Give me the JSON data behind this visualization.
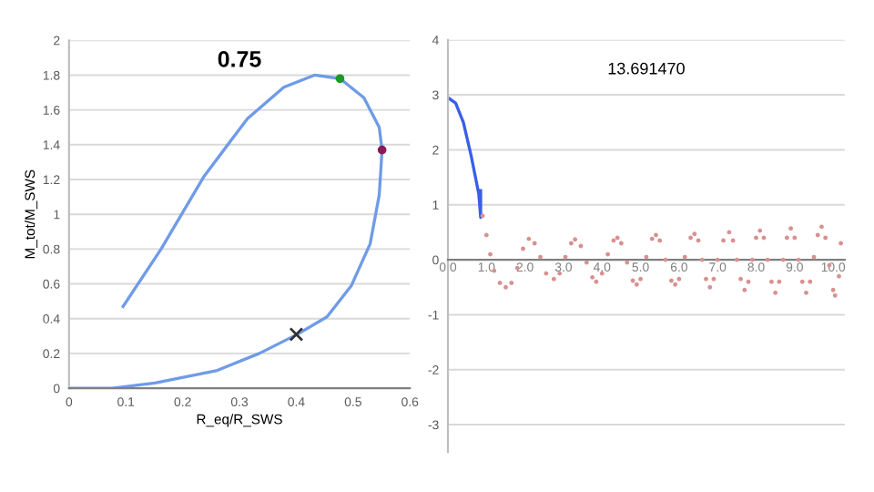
{
  "chart_data": [
    {
      "type": "line",
      "title": "0.75",
      "xlabel": "R_eq/R_SWS",
      "ylabel": "M_tot/M_SWS",
      "xlim": [
        0,
        0.6
      ],
      "ylim": [
        0,
        2
      ],
      "xticks": [
        0,
        0.1,
        0.2,
        0.3,
        0.4,
        0.5,
        0.6
      ],
      "yticks": [
        0,
        0.2,
        0.4,
        0.6,
        0.8,
        1,
        1.2,
        1.4,
        1.6,
        1.8,
        2
      ],
      "grid": "y",
      "series": [
        {
          "color": "#6f9be8",
          "x": [
            0.095,
            0.162,
            0.238,
            0.314,
            0.378,
            0.432,
            0.477,
            0.519,
            0.546,
            0.551,
            0.546,
            0.53,
            0.497,
            0.454,
            0.402,
            0.335,
            0.259,
            0.151,
            0.076,
            0
          ],
          "values": [
            0.47,
            0.8,
            1.22,
            1.55,
            1.73,
            1.8,
            1.78,
            1.67,
            1.5,
            1.37,
            1.11,
            0.83,
            0.59,
            0.41,
            0.31,
            0.2,
            0.1,
            0.03,
            0,
            0
          ]
        },
        {
          "type": "scatter",
          "color": "#1a9a2a",
          "marker": "circle",
          "x": [
            0.477
          ],
          "values": [
            1.78
          ]
        },
        {
          "type": "scatter",
          "color": "#8b1a5a",
          "marker": "circle",
          "x": [
            0.551
          ],
          "values": [
            1.37
          ]
        },
        {
          "type": "scatter",
          "color": "#333333",
          "marker": "cross",
          "x": [
            0.4
          ],
          "values": [
            0.31
          ]
        }
      ]
    },
    {
      "type": "line",
      "title": "13.691470",
      "xlim": [
        0,
        10.3
      ],
      "ylim": [
        -3.5,
        4
      ],
      "xticks": [
        {
          "value": 0,
          "label": "0.0"
        },
        {
          "value": 1,
          "label": "1.0"
        },
        {
          "value": 2,
          "label": "2.0"
        },
        {
          "value": 3,
          "label": "3.0"
        },
        {
          "value": 4,
          "label": "4.0"
        },
        {
          "value": 5,
          "label": "5.0"
        },
        {
          "value": 6,
          "label": "6.0"
        },
        {
          "value": 7,
          "label": "7.0"
        },
        {
          "value": 8,
          "label": "8.0"
        },
        {
          "value": 9,
          "label": "9.0"
        },
        {
          "value": 10,
          "label": "10.0"
        }
      ],
      "yticks": [
        -3,
        -2,
        -1,
        0,
        1,
        2,
        3,
        4
      ],
      "grid": "y",
      "series": [
        {
          "color": "#3a5ee8",
          "x": [
            0,
            0.2,
            0.4,
            0.6,
            0.8,
            0.85,
            0.85
          ],
          "values": [
            2.95,
            2.85,
            2.5,
            1.9,
            1.2,
            0.77,
            1.26
          ]
        },
        {
          "type": "scatter",
          "color": "#d99090",
          "marker": "circle",
          "x": [
            0.9,
            1.0,
            1.1,
            1.2,
            1.35,
            1.5,
            1.65,
            1.8,
            1.95,
            2.1,
            2.25,
            2.4,
            2.55,
            2.75,
            2.9,
            3.05,
            3.2,
            3.3,
            3.45,
            3.6,
            3.75,
            3.85,
            4.0,
            4.15,
            4.3,
            4.4,
            4.5,
            4.65,
            4.8,
            4.9,
            5.0,
            5.15,
            5.3,
            5.4,
            5.5,
            5.65,
            5.8,
            5.9,
            6.0,
            6.15,
            6.3,
            6.4,
            6.5,
            6.6,
            6.7,
            6.8,
            6.9,
            7.0,
            7.15,
            7.3,
            7.4,
            7.5,
            7.6,
            7.7,
            7.8,
            7.9,
            8.0,
            8.1,
            8.2,
            8.3,
            8.4,
            8.5,
            8.6,
            8.7,
            8.8,
            8.9,
            9.0,
            9.1,
            9.2,
            9.3,
            9.4,
            9.5,
            9.6,
            9.7,
            9.8,
            9.9,
            10.0,
            10.05,
            10.15,
            10.2
          ],
          "values": [
            0.8,
            0.45,
            0.1,
            -0.2,
            -0.42,
            -0.5,
            -0.42,
            -0.15,
            0.2,
            0.38,
            0.3,
            0.05,
            -0.25,
            -0.35,
            -0.25,
            0.05,
            0.3,
            0.37,
            0.25,
            -0.05,
            -0.32,
            -0.4,
            -0.25,
            0.1,
            0.35,
            0.4,
            0.3,
            -0.05,
            -0.38,
            -0.45,
            -0.35,
            0.05,
            0.38,
            0.45,
            0.35,
            0,
            -0.38,
            -0.45,
            -0.35,
            0.05,
            0.4,
            0.47,
            0.35,
            0,
            -0.35,
            -0.5,
            -0.35,
            0,
            0.35,
            0.5,
            0.35,
            0,
            -0.35,
            -0.55,
            -0.4,
            0,
            0.4,
            0.53,
            0.4,
            0,
            -0.4,
            -0.6,
            -0.4,
            0,
            0.4,
            0.57,
            0.4,
            0,
            -0.4,
            -0.6,
            -0.4,
            0.05,
            0.45,
            0.6,
            0.4,
            -0.1,
            -0.55,
            -0.65,
            -0.3,
            0.3
          ]
        }
      ]
    }
  ]
}
